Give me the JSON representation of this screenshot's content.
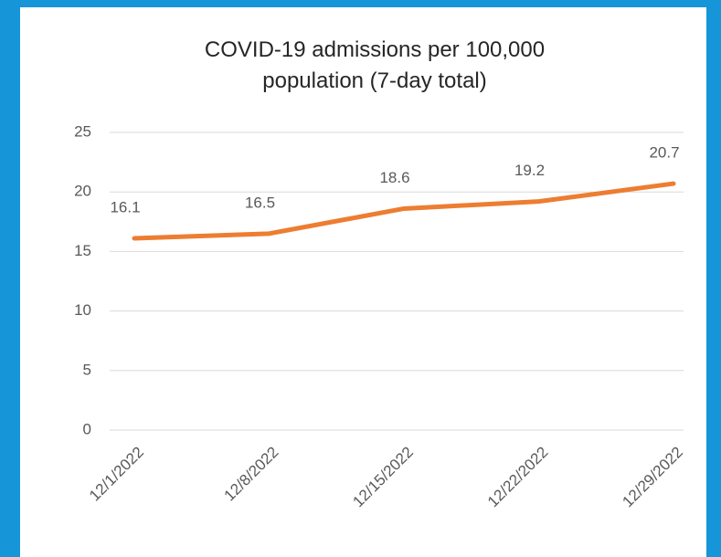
{
  "chart_data": {
    "type": "line",
    "title": "COVID-19 admissions per 100,000 population (7-day total)",
    "categories": [
      "12/1/2022",
      "12/8/2022",
      "12/15/2022",
      "12/22/2022",
      "12/29/2022"
    ],
    "series": [
      {
        "name": "COVID-19 admissions per 100,000 population (7-day total)",
        "color": "#ed7d31",
        "values": [
          16.1,
          16.5,
          18.6,
          19.2,
          20.7
        ]
      }
    ],
    "ylim": [
      0,
      25
    ],
    "yticks": [
      0,
      5,
      10,
      15,
      20,
      25
    ],
    "grid": true
  }
}
